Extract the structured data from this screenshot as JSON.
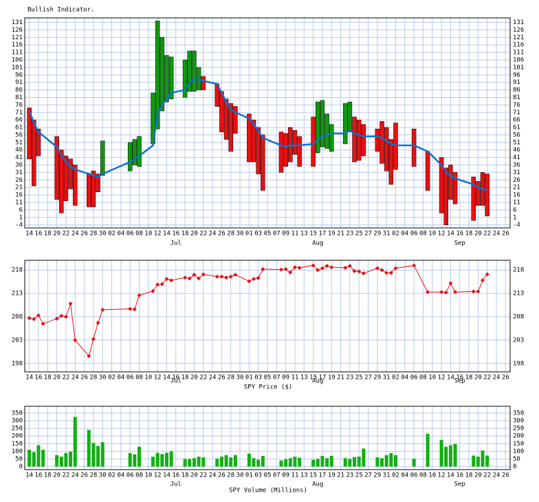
{
  "chart_data": [
    {
      "type": "floating-bar",
      "title": "Bullish Indicator.",
      "x": [
        0,
        1,
        2,
        6,
        7,
        8,
        9,
        10,
        13,
        14,
        15,
        16,
        22,
        23,
        24,
        27,
        28,
        29,
        30,
        31,
        34,
        35,
        36,
        37,
        38,
        41,
        42,
        43,
        44,
        45,
        48,
        49,
        50,
        51,
        55,
        56,
        57,
        58,
        59,
        62,
        63,
        64,
        65,
        66,
        69,
        70,
        71,
        72,
        73,
        76,
        77,
        78,
        79,
        80,
        84,
        87,
        90,
        91,
        92,
        93,
        97,
        98,
        99,
        100
      ],
      "open": [
        74,
        66,
        60,
        55,
        46,
        42,
        40,
        36,
        30,
        32,
        30,
        29,
        32,
        36,
        35,
        50,
        60,
        72,
        78,
        80,
        81,
        85,
        85,
        86,
        95,
        90,
        85,
        80,
        77,
        75,
        70,
        66,
        61,
        56,
        58,
        57,
        61,
        59,
        55,
        68,
        44,
        48,
        47,
        45,
        50,
        58,
        68,
        66,
        63,
        60,
        65,
        61,
        53,
        64,
        60,
        45,
        41,
        34,
        36,
        31,
        28,
        25,
        31,
        30
      ],
      "close": [
        40,
        22,
        42,
        13,
        4,
        12,
        20,
        9,
        8,
        8,
        18,
        52,
        51,
        53,
        55,
        84,
        132,
        121,
        109,
        108,
        106,
        112,
        112,
        101,
        86,
        75,
        58,
        53,
        45,
        57,
        38,
        38,
        30,
        19,
        31,
        35,
        38,
        43,
        35,
        35,
        78,
        79,
        70,
        63,
        77,
        78,
        38,
        39,
        42,
        45,
        37,
        32,
        23,
        33,
        35,
        19,
        4,
        -4,
        13,
        10,
        -1,
        9,
        9,
        2
      ],
      "up_color": "#109810",
      "down_color": "#e81010",
      "line": {
        "color": "#1070d0",
        "values": [
          72,
          64,
          58,
          48,
          42,
          38,
          35,
          33,
          30,
          29,
          28,
          30,
          38,
          40,
          42,
          49,
          70,
          76,
          80,
          84,
          86,
          91,
          93,
          93,
          92,
          90,
          84,
          78,
          73,
          71,
          67,
          63,
          59,
          54,
          49,
          48,
          49,
          49,
          49,
          50,
          53,
          55,
          56,
          57,
          57,
          59,
          57,
          56,
          55,
          55,
          54,
          52,
          50,
          49,
          49,
          45,
          36,
          31,
          29,
          27,
          23,
          21,
          20,
          19
        ]
      },
      "xlim": [
        -1,
        105
      ],
      "ylim": [
        -6,
        134
      ],
      "yticks": [
        131,
        126,
        121,
        116,
        111,
        106,
        101,
        96,
        91,
        86,
        81,
        76,
        71,
        66,
        61,
        56,
        51,
        46,
        41,
        36,
        31,
        26,
        21,
        16,
        11,
        6,
        1,
        -4
      ],
      "xticks": [
        {
          "value": 0,
          "label": "14"
        },
        {
          "value": 2,
          "label": "16"
        },
        {
          "value": 4,
          "label": "18"
        },
        {
          "value": 6,
          "label": "20"
        },
        {
          "value": 8,
          "label": "22"
        },
        {
          "value": 10,
          "label": "24"
        },
        {
          "value": 12,
          "label": "26"
        },
        {
          "value": 14,
          "label": "28"
        },
        {
          "value": 16,
          "label": "30"
        },
        {
          "value": 18,
          "label": "02"
        },
        {
          "value": 20,
          "label": "04"
        },
        {
          "value": 22,
          "label": "06"
        },
        {
          "value": 24,
          "label": "08"
        },
        {
          "value": 26,
          "label": "10"
        },
        {
          "value": 28,
          "label": "12"
        },
        {
          "value": 30,
          "label": "14"
        },
        {
          "value": 32,
          "label": "16"
        },
        {
          "value": 34,
          "label": "18"
        },
        {
          "value": 36,
          "label": "20"
        },
        {
          "value": 38,
          "label": "22"
        },
        {
          "value": 40,
          "label": "24"
        },
        {
          "value": 42,
          "label": "26"
        },
        {
          "value": 44,
          "label": "28"
        },
        {
          "value": 46,
          "label": "30"
        },
        {
          "value": 48,
          "label": "01"
        },
        {
          "value": 50,
          "label": "03"
        },
        {
          "value": 52,
          "label": "05"
        },
        {
          "value": 54,
          "label": "07"
        },
        {
          "value": 56,
          "label": "09"
        },
        {
          "value": 58,
          "label": "11"
        },
        {
          "value": 60,
          "label": "13"
        },
        {
          "value": 62,
          "label": "15"
        },
        {
          "value": 64,
          "label": "17"
        },
        {
          "value": 66,
          "label": "19"
        },
        {
          "value": 68,
          "label": "21"
        },
        {
          "value": 70,
          "label": "23"
        },
        {
          "value": 72,
          "label": "25"
        },
        {
          "value": 74,
          "label": "27"
        },
        {
          "value": 76,
          "label": "29"
        },
        {
          "value": 78,
          "label": "31"
        },
        {
          "value": 80,
          "label": "02"
        },
        {
          "value": 82,
          "label": "04"
        },
        {
          "value": 84,
          "label": "06"
        },
        {
          "value": 86,
          "label": "08"
        },
        {
          "value": 88,
          "label": "10"
        },
        {
          "value": 90,
          "label": "12"
        },
        {
          "value": 92,
          "label": "14"
        },
        {
          "value": 94,
          "label": "16"
        },
        {
          "value": 96,
          "label": "18"
        },
        {
          "value": 98,
          "label": "20"
        },
        {
          "value": 100,
          "label": "22"
        },
        {
          "value": 102,
          "label": "24"
        },
        {
          "value": 104,
          "label": "26"
        }
      ],
      "month_labels": [
        {
          "value": 32,
          "label": "Jul"
        },
        {
          "value": 63,
          "label": "Aug"
        },
        {
          "value": 94,
          "label": "Sep"
        }
      ],
      "grid": true
    },
    {
      "type": "line",
      "title": "SPY Price ($)",
      "color": "#e81010",
      "x": [
        0,
        1,
        2,
        3,
        6,
        7,
        8,
        9,
        10,
        13,
        14,
        15,
        16,
        22,
        23,
        24,
        27,
        28,
        29,
        30,
        31,
        34,
        35,
        36,
        37,
        38,
        41,
        42,
        43,
        44,
        45,
        48,
        49,
        50,
        51,
        55,
        56,
        57,
        58,
        59,
        62,
        63,
        64,
        65,
        66,
        69,
        70,
        71,
        72,
        73,
        76,
        77,
        78,
        79,
        80,
        84,
        87,
        90,
        91,
        92,
        93,
        97,
        98,
        99,
        100
      ],
      "values": [
        207.7,
        207.5,
        208.3,
        206.5,
        207.6,
        208.2,
        208.0,
        210.8,
        203.0,
        199.6,
        203.2,
        206.7,
        209.5,
        209.7,
        209.6,
        212.6,
        213.5,
        214.9,
        215.0,
        216.1,
        215.8,
        216.4,
        216.2,
        217.0,
        216.2,
        217.1,
        216.6,
        216.6,
        216.4,
        216.6,
        217.0,
        215.6,
        216.1,
        216.3,
        218.2,
        218.1,
        218.2,
        217.5,
        218.6,
        218.5,
        219.0,
        218.0,
        218.4,
        218.9,
        218.6,
        218.5,
        218.9,
        217.8,
        217.7,
        217.3,
        218.4,
        218.0,
        217.4,
        217.4,
        218.4,
        219.0,
        213.3,
        213.3,
        213.2,
        215.2,
        213.3,
        213.4,
        213.4,
        215.8,
        217.1
      ],
      "xlim": [
        -1,
        105
      ],
      "ylim": [
        196.2,
        220.1
      ],
      "yticks": [
        218,
        213,
        208,
        203,
        198
      ],
      "grid": true
    },
    {
      "type": "bar",
      "title": "SPY Volume (Millions)",
      "color": "#10b010",
      "x": [
        0,
        1,
        2,
        3,
        6,
        7,
        8,
        9,
        10,
        13,
        14,
        15,
        16,
        22,
        23,
        24,
        27,
        28,
        29,
        30,
        31,
        34,
        35,
        36,
        37,
        38,
        41,
        42,
        43,
        44,
        45,
        48,
        49,
        50,
        51,
        55,
        56,
        57,
        58,
        59,
        62,
        63,
        64,
        65,
        66,
        69,
        70,
        71,
        72,
        73,
        76,
        77,
        78,
        79,
        80,
        84,
        87,
        90,
        91,
        92,
        93,
        97,
        98,
        99,
        100
      ],
      "values": [
        110,
        95,
        140,
        110,
        75,
        65,
        88,
        97,
        325,
        240,
        155,
        135,
        160,
        88,
        80,
        130,
        65,
        90,
        82,
        90,
        100,
        50,
        50,
        55,
        65,
        60,
        52,
        65,
        75,
        60,
        75,
        85,
        55,
        45,
        70,
        40,
        48,
        55,
        65,
        58,
        45,
        50,
        70,
        55,
        70,
        55,
        50,
        62,
        65,
        118,
        60,
        55,
        75,
        88,
        75,
        52,
        215,
        175,
        130,
        140,
        148,
        72,
        65,
        105,
        72
      ],
      "xlim": [
        -1,
        105
      ],
      "ylim": [
        -20,
        395
      ],
      "yticks": [
        350,
        300,
        250,
        200,
        150,
        100,
        50,
        0
      ],
      "grid": true
    }
  ]
}
